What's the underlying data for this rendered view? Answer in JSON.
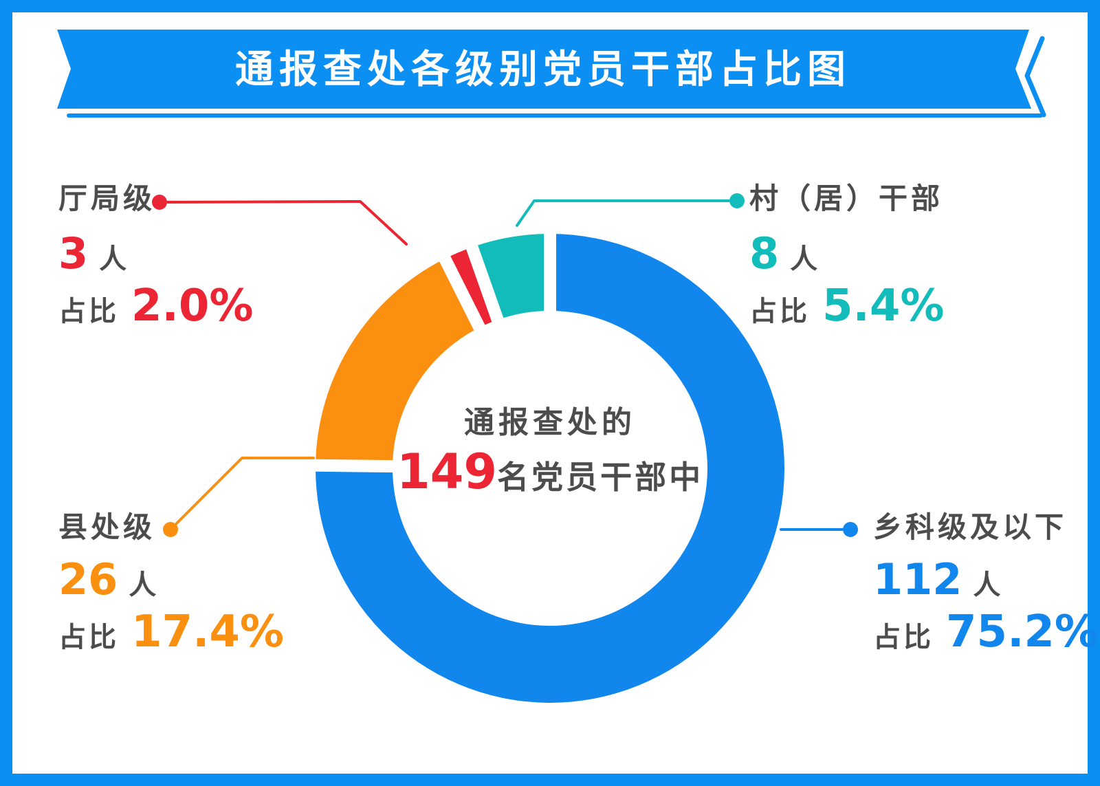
{
  "title": "通报查处各级别党员干部占比图",
  "colors": {
    "brand": "#0C8FF2",
    "ink": "#4C4C4C",
    "red": "#EC2535",
    "background": "#FFFFFF"
  },
  "shared": {
    "pct_prefix": "占比"
  },
  "chart_data": {
    "type": "pie",
    "variant": "donut",
    "title": "通报查处各级别党员干部占比图",
    "total": 149,
    "legend_position": "callouts-around-donut",
    "center": {
      "prefix": "通报查处的",
      "total": 149,
      "suffix": "名党员干部中"
    },
    "segments": [
      {
        "label": "乡科级及以下",
        "count": 112,
        "unit": "人",
        "pct": 75.2,
        "pct_label": "75.2%",
        "color": "#1186EC"
      },
      {
        "label": "县处级",
        "count": 26,
        "unit": "人",
        "pct": 17.4,
        "pct_label": "17.4%",
        "color": "#FA8F10"
      },
      {
        "label": "厅局级",
        "count": 3,
        "unit": "人",
        "pct": 2.0,
        "pct_label": "2.0%",
        "color": "#EC2535"
      },
      {
        "label": "村（居）干部",
        "count": 8,
        "unit": "人",
        "pct": 5.4,
        "pct_label": "5.4%",
        "color": "#12BCBA"
      }
    ]
  }
}
